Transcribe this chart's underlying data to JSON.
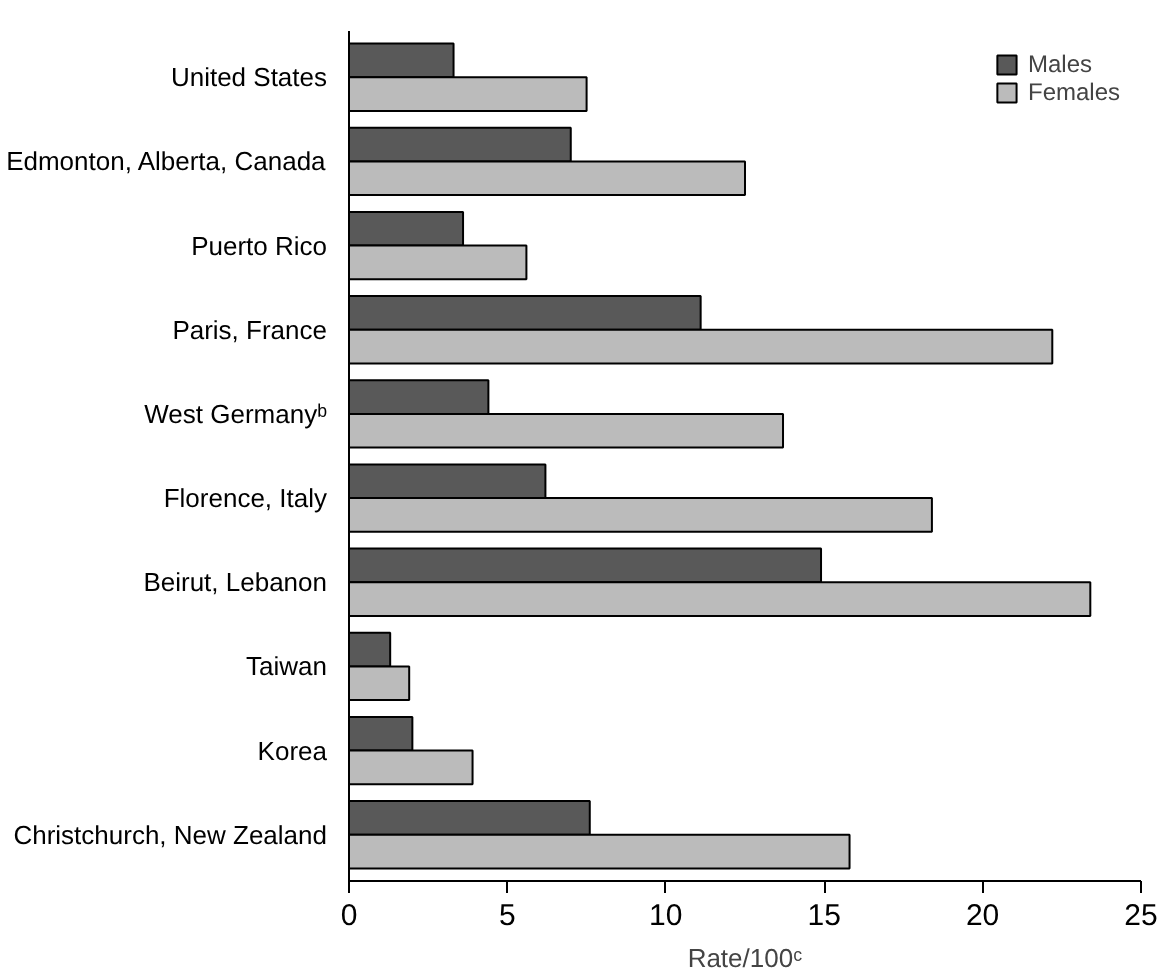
{
  "chart_data": {
    "type": "bar",
    "orientation": "horizontal",
    "xlabel": "Rate/100ᶜ",
    "categories": [
      "United States",
      "Edmonton, Alberta, Canada",
      "Puerto Rico",
      "Paris, France",
      "West Germanyᵇ",
      "Florence, Italy",
      "Beirut, Lebanon",
      "Taiwan",
      "Korea",
      "Christchurch, New Zealand"
    ],
    "series": [
      {
        "name": "Males",
        "color": "#595959",
        "values": [
          3.3,
          7.0,
          3.6,
          11.1,
          4.4,
          6.2,
          14.9,
          1.3,
          2.0,
          7.6
        ]
      },
      {
        "name": "Females",
        "color": "#bbbbbb",
        "values": [
          7.5,
          12.5,
          5.6,
          22.2,
          13.7,
          18.4,
          23.4,
          1.9,
          3.9,
          15.8
        ]
      }
    ],
    "xlim": [
      0,
      25
    ],
    "xticks": [
      0,
      5,
      10,
      15,
      20,
      25
    ],
    "grid": false,
    "legend": "top right"
  }
}
